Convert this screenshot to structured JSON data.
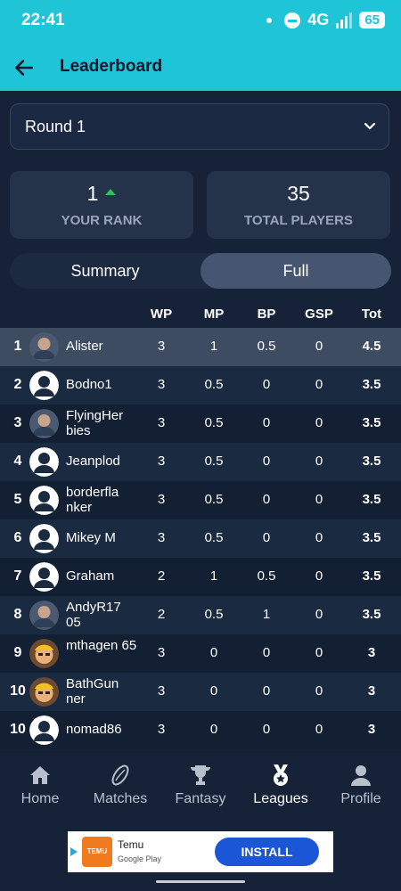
{
  "status": {
    "time": "22:41",
    "network": "4G",
    "battery": "65"
  },
  "appbar": {
    "title": "Leaderboard"
  },
  "dropdown": {
    "value": "Round 1"
  },
  "cards": {
    "rank": {
      "value": "1",
      "label": "YOUR RANK"
    },
    "players": {
      "value": "35",
      "label": "TOTAL PLAYERS"
    }
  },
  "toggle": {
    "summary": "Summary",
    "full": "Full",
    "selected": "Full"
  },
  "table": {
    "headers": [
      "WP",
      "MP",
      "BP",
      "GSP",
      "Tot"
    ],
    "rows": [
      {
        "rank": "1",
        "name": "Alister",
        "wp": "3",
        "mp": "1",
        "bp": "0.5",
        "gsp": "0",
        "tot": "4.5",
        "avatar": "photo-avatar"
      },
      {
        "rank": "2",
        "name": "Bodno1",
        "wp": "3",
        "mp": "0.5",
        "bp": "0",
        "gsp": "0",
        "tot": "3.5",
        "avatar": "default-avatar"
      },
      {
        "rank": "3",
        "name": "FlyingHer bies",
        "wp": "3",
        "mp": "0.5",
        "bp": "0",
        "gsp": "0",
        "tot": "3.5",
        "avatar": "photo-avatar"
      },
      {
        "rank": "4",
        "name": "Jeanplod",
        "wp": "3",
        "mp": "0.5",
        "bp": "0",
        "gsp": "0",
        "tot": "3.5",
        "avatar": "default-avatar"
      },
      {
        "rank": "5",
        "name": "borderfla nker",
        "wp": "3",
        "mp": "0.5",
        "bp": "0",
        "gsp": "0",
        "tot": "3.5",
        "avatar": "default-avatar"
      },
      {
        "rank": "6",
        "name": "Mikey M",
        "wp": "3",
        "mp": "0.5",
        "bp": "0",
        "gsp": "0",
        "tot": "3.5",
        "avatar": "default-avatar"
      },
      {
        "rank": "7",
        "name": "Graham",
        "wp": "2",
        "mp": "1",
        "bp": "0.5",
        "gsp": "0",
        "tot": "3.5",
        "avatar": "default-avatar"
      },
      {
        "rank": "8",
        "name": "AndyR17 05",
        "wp": "2",
        "mp": "0.5",
        "bp": "1",
        "gsp": "0",
        "tot": "3.5",
        "avatar": "photo-avatar"
      },
      {
        "rank": "9",
        "name": "mthagen 65",
        "wp": "3",
        "mp": "0",
        "bp": "0",
        "gsp": "0",
        "tot": "3",
        "avatar": "cartoon-avatar"
      },
      {
        "rank": "10",
        "name": "BathGun ner",
        "wp": "3",
        "mp": "0",
        "bp": "0",
        "gsp": "0",
        "tot": "3",
        "avatar": "cartoon-avatar"
      },
      {
        "rank": "10",
        "name": "nomad86",
        "wp": "3",
        "mp": "0",
        "bp": "0",
        "gsp": "0",
        "tot": "3",
        "avatar": "default-avatar"
      }
    ]
  },
  "nav": [
    {
      "label": "Home",
      "icon": "home-icon"
    },
    {
      "label": "Matches",
      "icon": "rugby-ball-icon"
    },
    {
      "label": "Fantasy",
      "icon": "trophy-icon"
    },
    {
      "label": "Leagues",
      "icon": "medal-icon",
      "active": true
    },
    {
      "label": "Profile",
      "icon": "person-icon"
    }
  ],
  "ad": {
    "app": "Temu",
    "store": "Google Play",
    "button": "INSTALL",
    "logo_text": "TEMU"
  },
  "colors": {
    "accent": "#1fc4d6",
    "background": "#152238",
    "highlight_row": "#3e4c62",
    "rank_up": "#2fbf5c",
    "install": "#1a56d6"
  }
}
